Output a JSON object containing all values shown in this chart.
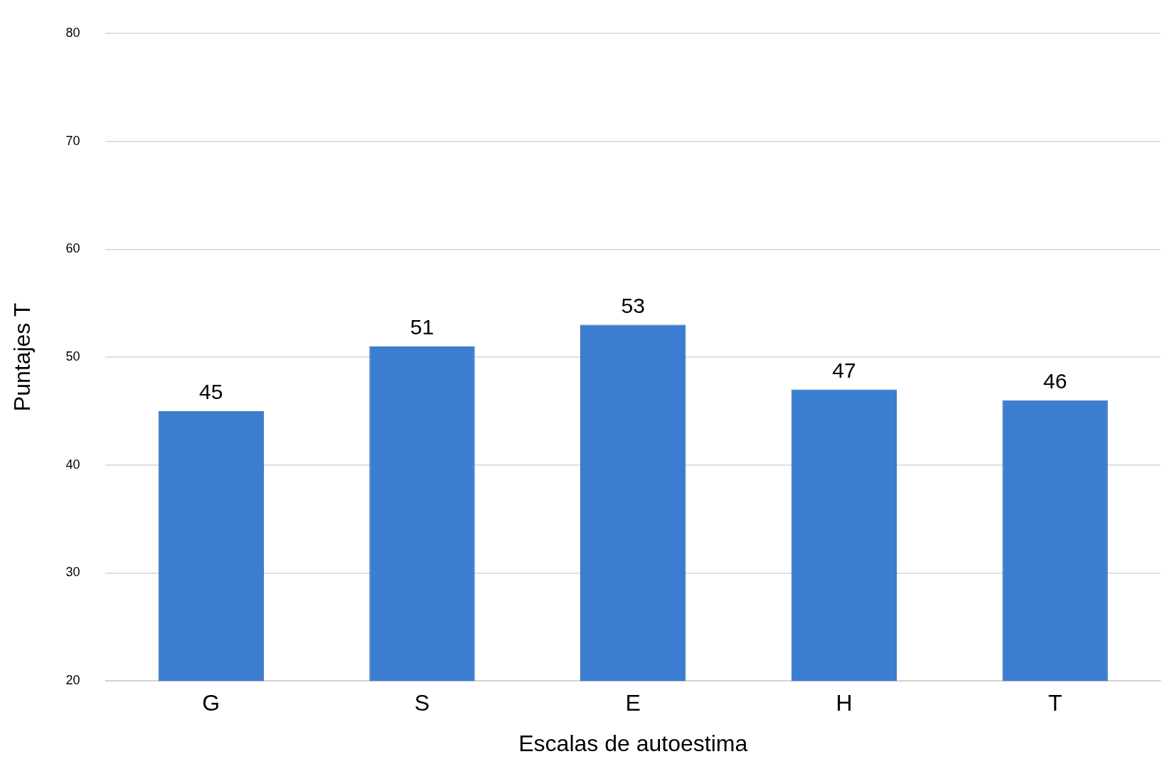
{
  "chart_data": {
    "type": "bar",
    "xlabel": "Escalas de autoestima",
    "ylabel": "Puntajes T",
    "categories": [
      "G",
      "S",
      "E",
      "H",
      "T"
    ],
    "values": [
      45,
      51,
      53,
      47,
      46
    ],
    "color": "#3b7dd0",
    "ylim": [
      20,
      80
    ],
    "yticks": [
      20,
      30,
      40,
      50,
      60,
      70,
      80
    ],
    "grid": "y",
    "data_labels": true,
    "legend": false
  }
}
